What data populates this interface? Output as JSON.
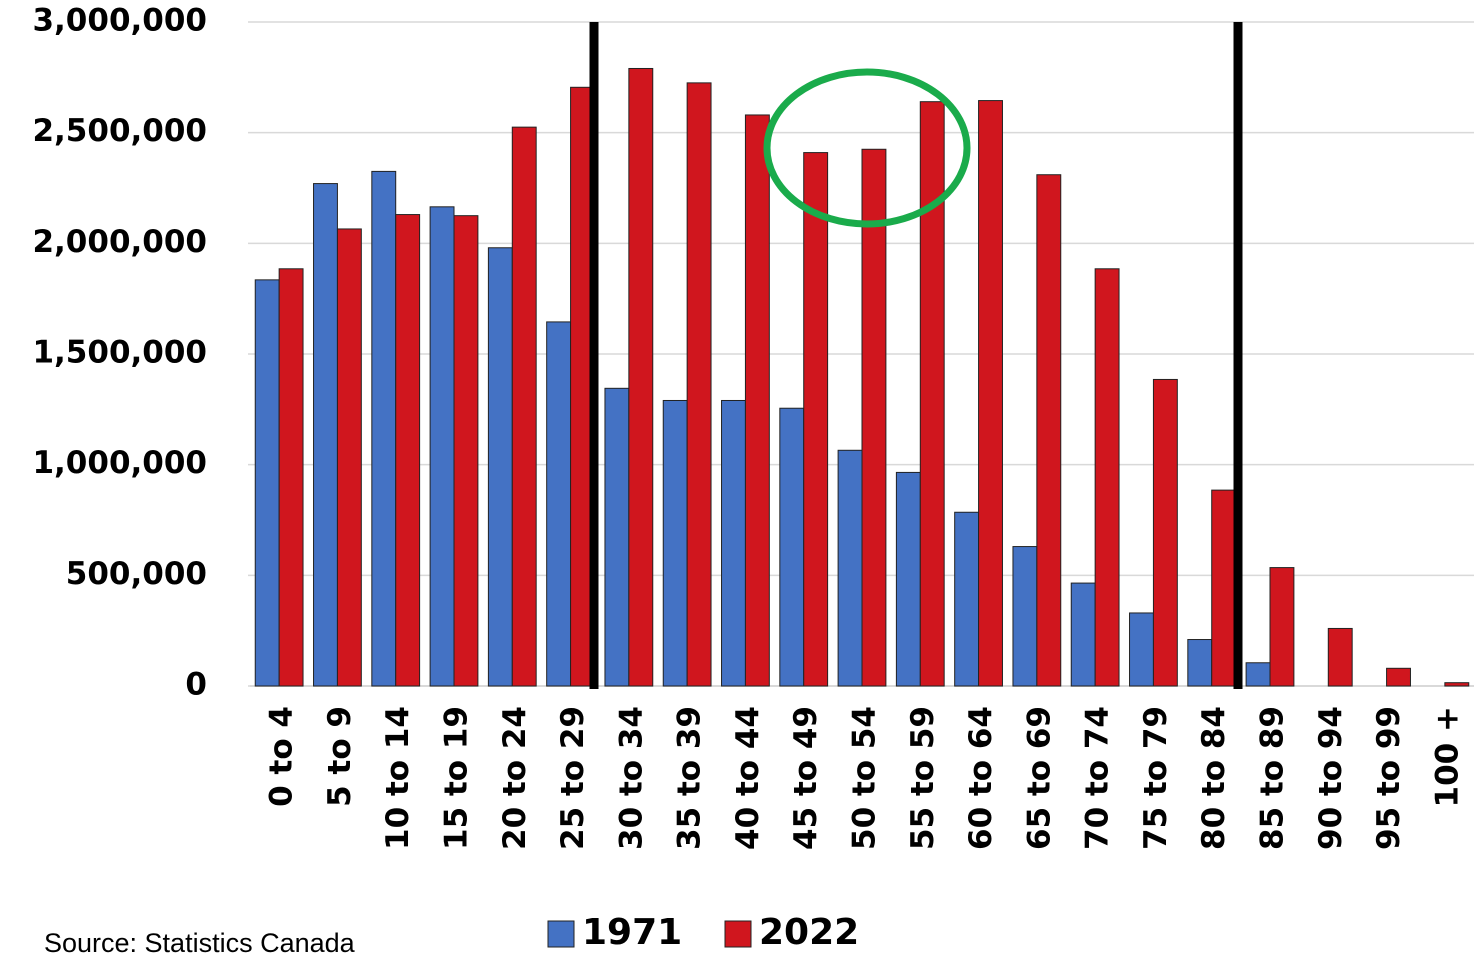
{
  "chart_data": {
    "type": "bar",
    "source": "Source: Statistics Canada",
    "categories": [
      "0 to 4",
      "5 to 9",
      "10 to 14",
      "15 to 19",
      "20 to 24",
      "25 to 29",
      "30 to 34",
      "35 to 39",
      "40 to 44",
      "45 to 49",
      "50 to 54",
      "55 to 59",
      "60 to 64",
      "65 to 69",
      "70 to 74",
      "75 to 79",
      "80 to 84",
      "85 to 89",
      "90 to 94",
      "95 to 99",
      "100 +"
    ],
    "series": [
      {
        "name": "1971",
        "color": "#4472c4",
        "values": [
          1835000,
          2270000,
          2325000,
          2165000,
          1980000,
          1645000,
          1345000,
          1290000,
          1290000,
          1255000,
          1065000,
          965000,
          785000,
          630000,
          465000,
          330000,
          210000,
          105000,
          0,
          0,
          0
        ]
      },
      {
        "name": "2022",
        "color": "#d0161e",
        "values": [
          1885000,
          2065000,
          2130000,
          2125000,
          2525000,
          2705000,
          2790000,
          2725000,
          2580000,
          2410000,
          2425000,
          2640000,
          2645000,
          2310000,
          1885000,
          1385000,
          885000,
          535000,
          260000,
          80000,
          15000
        ]
      }
    ],
    "ylim": [
      0,
      3000000
    ],
    "yticks": [
      0,
      {
        "value": 500000,
        "label": "500,000"
      },
      {
        "value": 1000000,
        "label": "1,000,000"
      },
      {
        "value": 1500000,
        "label": "1,500,000"
      },
      {
        "value": 2000000,
        "label": "2,000,000"
      },
      {
        "value": 2500000,
        "label": "2,500,000"
      },
      {
        "value": 3000000,
        "label": "3,000,000"
      }
    ],
    "grid": true
  }
}
